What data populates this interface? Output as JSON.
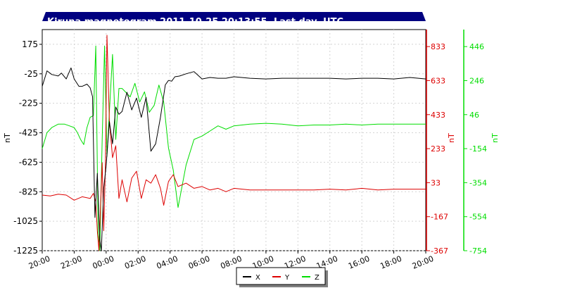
{
  "chart_data": {
    "type": "line",
    "title": "Kiruna magnetogram 2011-10-25 20:13:55, Last day, UTC",
    "colors": {
      "X": "#000000",
      "Y": "#dd0000",
      "Z": "#00dd00",
      "title_bg": "#000080",
      "title_fg": "#ffffff",
      "grid": "#d4d4d4"
    },
    "x_ticks": [
      "20:00",
      "22:00",
      "00:00",
      "02:00",
      "04:00",
      "06:00",
      "08:00",
      "10:00",
      "12:00",
      "14:00",
      "16:00",
      "18:00",
      "20:00"
    ],
    "xlim": [
      0,
      24
    ],
    "grid": true,
    "legend_position": "bottom-center",
    "axes": [
      {
        "name": "X",
        "label": "nT",
        "side": "left",
        "color": "#000000",
        "ticks": [
          175,
          -25,
          -225,
          -425,
          -625,
          -825,
          -1025,
          -1225
        ],
        "ylim": [
          -1225,
          275
        ]
      },
      {
        "name": "Y",
        "label": "nT",
        "side": "right",
        "color": "#dd0000",
        "ticks": [
          833,
          633,
          433,
          233,
          33,
          -167,
          -367
        ],
        "ylim": [
          -367,
          933
        ]
      },
      {
        "name": "Z",
        "label": "nT",
        "side": "right",
        "color": "#00dd00",
        "ticks": [
          446,
          246,
          46,
          -154,
          -354,
          -554,
          -754
        ],
        "ylim": [
          -754,
          546
        ]
      }
    ],
    "series": [
      {
        "name": "X",
        "axis": 0,
        "color": "#000000",
        "x": [
          0,
          0.3,
          0.6,
          1.0,
          1.2,
          1.5,
          1.8,
          2.0,
          2.3,
          2.5,
          2.8,
          3.0,
          3.15,
          3.3,
          3.45,
          3.6,
          3.7,
          3.85,
          4.0,
          4.2,
          4.4,
          4.6,
          4.8,
          5.0,
          5.3,
          5.6,
          5.9,
          6.2,
          6.5,
          6.8,
          7.1,
          7.4,
          7.7,
          7.9,
          8.1,
          8.3,
          8.6,
          9.0,
          9.5,
          10.0,
          10.5,
          11.0,
          11.5,
          12.0,
          13.0,
          14.0,
          15.0,
          16.0,
          17.0,
          18.0,
          19.0,
          20.0,
          21.0,
          22.0,
          23.0,
          24.0
        ],
        "y": [
          -110,
          -5,
          -30,
          -40,
          -20,
          -60,
          15,
          -60,
          -110,
          -110,
          -95,
          -120,
          -180,
          -1000,
          -700,
          -1150,
          -1225,
          -800,
          -650,
          -350,
          -500,
          -250,
          -300,
          -280,
          -150,
          -270,
          -190,
          -320,
          -185,
          -550,
          -500,
          -320,
          -100,
          -70,
          -75,
          -45,
          -40,
          -25,
          -10,
          -60,
          -50,
          -55,
          -55,
          -45,
          -55,
          -60,
          -55,
          -55,
          -55,
          -55,
          -60,
          -55,
          -55,
          -60,
          -50,
          -60
        ]
      },
      {
        "name": "Y",
        "axis": 1,
        "color": "#dd0000",
        "x": [
          0,
          0.5,
          1.0,
          1.5,
          2.0,
          2.5,
          3.0,
          3.2,
          3.35,
          3.45,
          3.55,
          3.65,
          3.75,
          3.85,
          3.95,
          4.05,
          4.2,
          4.4,
          4.6,
          4.8,
          5.0,
          5.3,
          5.6,
          5.9,
          6.2,
          6.5,
          6.8,
          7.1,
          7.4,
          7.6,
          7.9,
          8.2,
          8.5,
          9.0,
          9.5,
          10.0,
          10.5,
          11.0,
          11.5,
          12.0,
          13.0,
          14.0,
          15.0,
          16.0,
          17.0,
          18.0,
          19.0,
          20.0,
          21.0,
          22.0,
          23.0,
          24.0
        ],
        "y": [
          -40,
          -45,
          -35,
          -40,
          -70,
          -50,
          -60,
          -30,
          -80,
          -250,
          -367,
          -100,
          150,
          -250,
          120,
          900,
          400,
          180,
          250,
          -60,
          50,
          -80,
          60,
          100,
          -60,
          50,
          30,
          80,
          0,
          -100,
          40,
          80,
          10,
          30,
          0,
          10,
          -10,
          0,
          -20,
          0,
          -10,
          -10,
          -10,
          -10,
          -10,
          -5,
          -10,
          0,
          -10,
          -5,
          -5,
          -5
        ]
      },
      {
        "name": "Z",
        "axis": 2,
        "color": "#00dd00",
        "x": [
          0,
          0.3,
          0.6,
          1.0,
          1.4,
          1.7,
          2.0,
          2.2,
          2.4,
          2.6,
          2.8,
          3.0,
          3.2,
          3.35,
          3.5,
          3.6,
          3.75,
          3.9,
          4.05,
          4.2,
          4.4,
          4.6,
          4.8,
          5.0,
          5.2,
          5.5,
          5.8,
          6.1,
          6.4,
          6.7,
          7.0,
          7.3,
          7.6,
          7.9,
          8.2,
          8.5,
          9.0,
          9.5,
          10.0,
          10.5,
          11.0,
          11.5,
          12.0,
          13.0,
          14.0,
          15.0,
          16.0,
          17.0,
          18.0,
          19.0,
          20.0,
          21.0,
          22.0,
          23.0,
          24.0
        ],
        "y": [
          -154,
          -60,
          -30,
          -10,
          -10,
          -20,
          -30,
          -60,
          -100,
          -130,
          -30,
          30,
          40,
          450,
          -650,
          -754,
          -100,
          450,
          -200,
          60,
          400,
          -100,
          200,
          200,
          180,
          150,
          230,
          120,
          180,
          60,
          100,
          220,
          120,
          -150,
          -280,
          -500,
          -250,
          -100,
          -80,
          -50,
          -20,
          -40,
          -20,
          -10,
          -5,
          -10,
          -20,
          -15,
          -15,
          -10,
          -15,
          -10,
          -10,
          -10,
          -10
        ]
      }
    ]
  }
}
